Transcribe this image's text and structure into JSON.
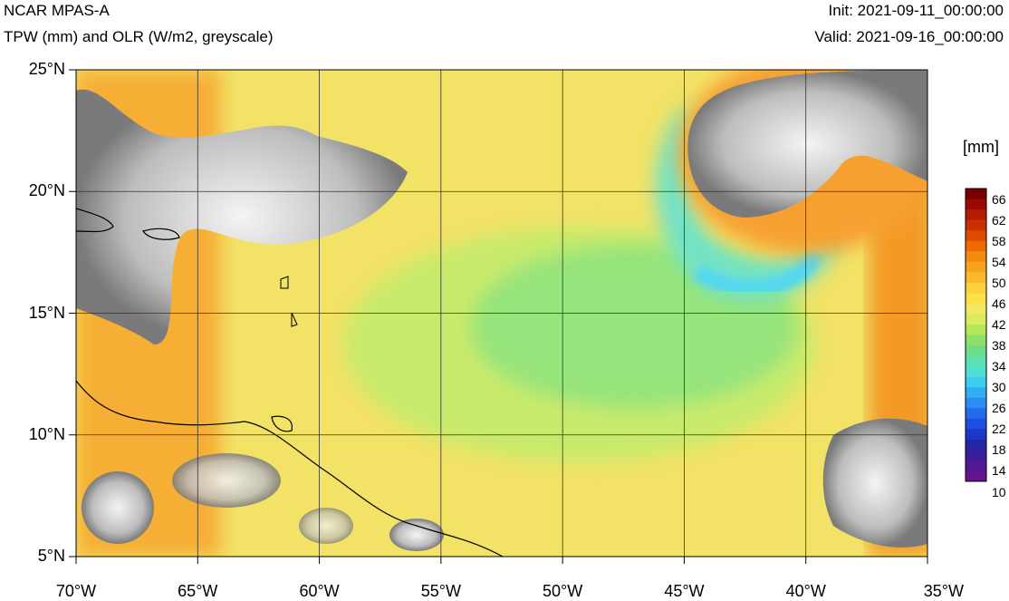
{
  "header": {
    "title": "NCAR MPAS-A",
    "subtitle": "TPW (mm) and OLR (W/m2, greyscale)",
    "init": "Init: 2021-09-11_00:00:00",
    "valid": "Valid: 2021-09-16_00:00:00"
  },
  "map": {
    "lat_labels": [
      "25°N",
      "20°N",
      "15°N",
      "10°N",
      "5°N"
    ],
    "lon_labels": [
      "70°W",
      "65°W",
      "60°W",
      "55°W",
      "50°W",
      "45°W",
      "40°W",
      "35°W"
    ],
    "lat_range": [
      5,
      25
    ],
    "lon_range": [
      -70,
      -35
    ]
  },
  "colorbar": {
    "units": "[mm]",
    "labels": [
      "66",
      "62",
      "58",
      "54",
      "50",
      "46",
      "42",
      "38",
      "34",
      "30",
      "26",
      "22",
      "18",
      "14",
      "10"
    ],
    "colors": [
      "#7a0000",
      "#990a00",
      "#b31c00",
      "#c93000",
      "#de4a00",
      "#ee6a00",
      "#f58a10",
      "#f9a21e",
      "#fbb92e",
      "#fdd03c",
      "#fbe04a",
      "#f1ea60",
      "#d8ec5c",
      "#b6e65a",
      "#8ee06a",
      "#6fdc8a",
      "#5ee0b0",
      "#4fe0d4",
      "#3ecff0",
      "#33aef0",
      "#2a8ef0",
      "#226cf0",
      "#1e4ee0",
      "#1b38c8",
      "#2424a8",
      "#3a1c9a",
      "#501896",
      "#66148c"
    ]
  }
}
